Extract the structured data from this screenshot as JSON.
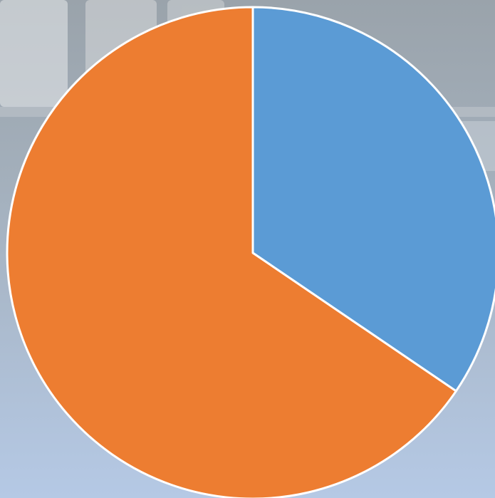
{
  "chart_data": {
    "type": "pie",
    "values": [
      34.5,
      65.5
    ],
    "colors": [
      "#5b9bd5",
      "#ed7d31"
    ],
    "start_angle": 0,
    "direction": "clockwise"
  }
}
